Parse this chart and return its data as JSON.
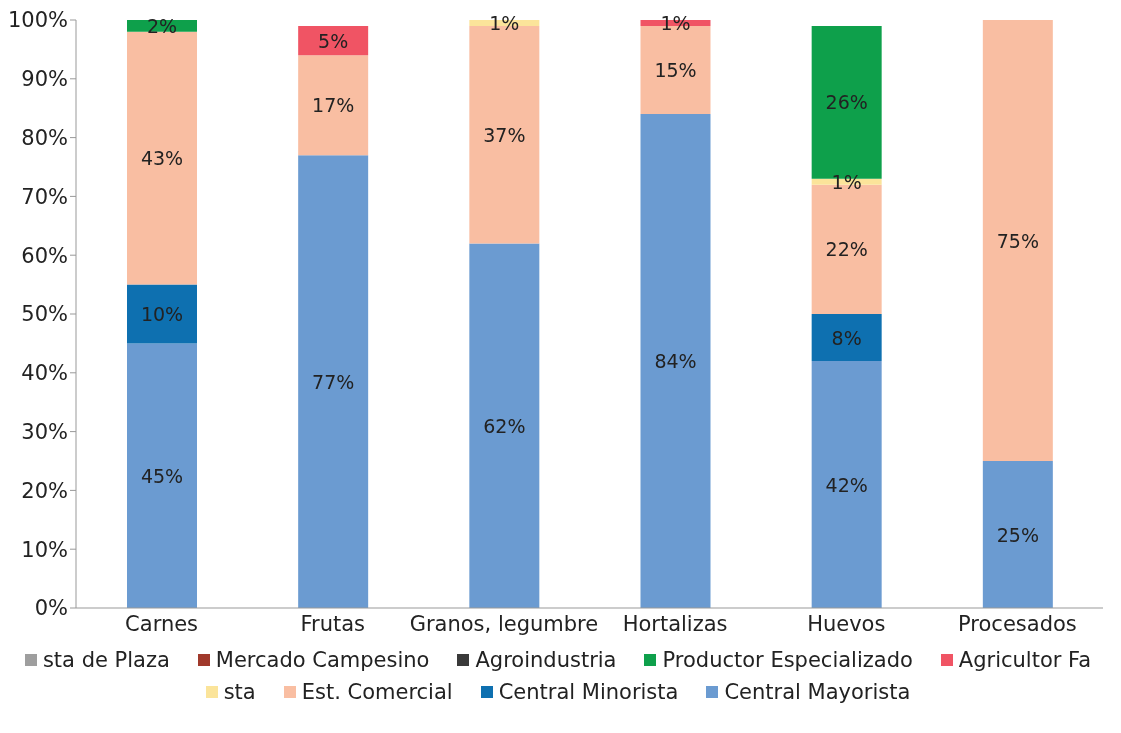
{
  "chart_data": {
    "type": "bar",
    "stacked": true,
    "categories": [
      "Carnes",
      "Frutas",
      "Granos, legumbre",
      "Hortalizas",
      "Huevos",
      "Procesados"
    ],
    "series": [
      {
        "name": "Central Mayorista",
        "color": "#6b9bd1",
        "values": [
          45,
          77,
          62,
          84,
          42,
          25
        ],
        "value_labels": [
          "45%",
          "77%",
          "62%",
          "84%",
          "42%",
          "25%"
        ]
      },
      {
        "name": "Central Minorista",
        "color": "#0e70b0",
        "values": [
          10,
          null,
          null,
          null,
          8,
          null
        ],
        "value_labels": [
          "10%",
          null,
          null,
          null,
          "8%",
          null
        ]
      },
      {
        "name": "Est. Comercial",
        "color": "#f9bea2",
        "values": [
          43,
          17,
          37,
          15,
          22,
          75
        ],
        "value_labels": [
          "43%",
          "17%",
          "37%",
          "15%",
          "22%",
          "75%"
        ]
      },
      {
        "name": "sta",
        "color": "#fbe49a",
        "values": [
          null,
          null,
          1,
          null,
          1,
          null
        ],
        "value_labels": [
          null,
          null,
          "1%",
          null,
          "1%",
          null
        ]
      },
      {
        "name": "Agricultor Fa",
        "color": "#f05464",
        "values": [
          null,
          5,
          null,
          1,
          null,
          null
        ],
        "value_labels": [
          null,
          "5%",
          null,
          "1%",
          null,
          null
        ]
      },
      {
        "name": "Productor Especializado",
        "color": "#0ea04b",
        "values": [
          2,
          null,
          null,
          null,
          26,
          null
        ],
        "value_labels": [
          "2%",
          null,
          null,
          null,
          "26%",
          null
        ]
      },
      {
        "name": "Agroindustria",
        "color": "#3a3a3a",
        "values": [
          null,
          null,
          null,
          null,
          null,
          null
        ]
      },
      {
        "name": "Mercado Campesino",
        "color": "#a0392b",
        "values": [
          null,
          null,
          null,
          null,
          null,
          null
        ]
      },
      {
        "name": "sta de Plaza",
        "color": "#9e9e9e",
        "values": [
          null,
          null,
          null,
          null,
          null,
          null
        ]
      }
    ],
    "ylim": [
      0,
      100
    ],
    "yticks": [
      {
        "value": 0,
        "label": "0%"
      },
      {
        "value": 10,
        "label": "10%"
      },
      {
        "value": 20,
        "label": "20%"
      },
      {
        "value": 30,
        "label": "30%"
      },
      {
        "value": 40,
        "label": "40%"
      },
      {
        "value": 50,
        "label": "50%"
      },
      {
        "value": 60,
        "label": "60%"
      },
      {
        "value": 70,
        "label": "70%"
      },
      {
        "value": 80,
        "label": "80%"
      },
      {
        "value": 90,
        "label": "90%"
      },
      {
        "value": 100,
        "label": "100%"
      }
    ],
    "grid": false,
    "legend": "bottom"
  }
}
